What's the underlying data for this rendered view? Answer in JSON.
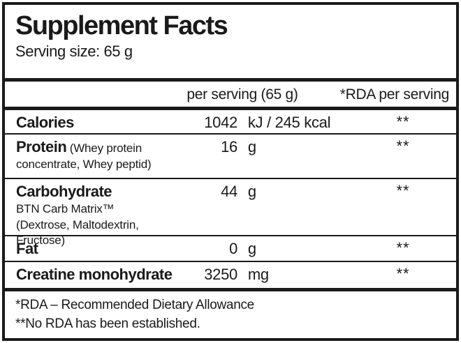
{
  "colors": {
    "ink": "#1a1a1a",
    "paper": "#ffffff"
  },
  "header": {
    "title": "Supplement Facts",
    "serving_size": "Serving size: 65 g"
  },
  "columns": {
    "amount_label": "per serving (65 g)",
    "rda_label": "*RDA per serving"
  },
  "rows": [
    {
      "name": "Calories",
      "amount_value": "1042",
      "amount_unit": "kJ / 245 kcal",
      "rda": "**"
    },
    {
      "name": "Protein",
      "inline_note": "(Whey protein",
      "sub_line": "concentrate, Whey peptid)",
      "amount_value": "16",
      "amount_unit": "g",
      "rda": "**"
    },
    {
      "name": "Carbohydrate",
      "sub_line_1": "BTN Carb Matrix™",
      "sub_line_2": "(Dextrose, Maltodextrin, Fructose)",
      "amount_value": "44",
      "amount_unit": "g",
      "rda": "**"
    },
    {
      "name": "Fat",
      "amount_value": "0",
      "amount_unit": "g",
      "rda": "**"
    },
    {
      "name": "Creatine monohydrate",
      "amount_value": "3250",
      "amount_unit": "mg",
      "rda": "**"
    }
  ],
  "footnotes": {
    "line1": "*RDA – Recommended Dietary Allowance",
    "line2": "**No RDA has been established."
  }
}
